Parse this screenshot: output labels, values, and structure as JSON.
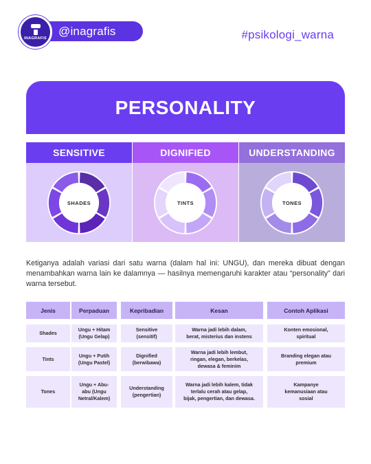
{
  "header": {
    "logo_text": "INAGRAFIS",
    "handle": "@inagrafis",
    "hashtag": "#psikologi_warna"
  },
  "title": "PERSONALITY",
  "columns": [
    {
      "heading": "SENSITIVE",
      "donut_label": "SHADES",
      "header_color": "#6a3df0",
      "panel_color": "#dccdfc",
      "segments": [
        "#5a2ea6",
        "#6a37c4",
        "#5c24b8",
        "#6f35d9",
        "#7c47e6",
        "#8a5ae8"
      ]
    },
    {
      "heading": "DIGNIFIED",
      "donut_label": "TINTS",
      "header_color": "#a855f7",
      "panel_color": "#dcbaf5",
      "segments": [
        "#9b6cf2",
        "#b08cf5",
        "#c3a6f7",
        "#d7c2fa",
        "#e4d5fc",
        "#efe6fd"
      ]
    },
    {
      "heading": "UNDERSTANDING",
      "donut_label": "TONES",
      "header_color": "#9370db",
      "panel_color": "#b9aedb",
      "segments": [
        "#6d4ad1",
        "#7a57dc",
        "#8d6ce5",
        "#a48bea",
        "#c4b2f3",
        "#e0d5fa"
      ]
    }
  ],
  "paragraph": "Ketiganya adalah variasi dari satu warna (dalam hal ini: UNGU), dan mereka dibuat dengan menambahkan warna lain ke dalamnya — hasilnya memengaruhi karakter atau “personality” dari warna tersebut.",
  "table": {
    "headers": [
      "Jenis",
      "Perpaduan",
      "Kepribadian",
      "Kesan",
      "Contoh Aplikasi"
    ],
    "rows": [
      [
        "Shades",
        "Ungu + Hitam\n(Ungu Gelap)",
        "Sensitive\n(sensitif)",
        "Warna jadi lebih dalam,\nberat, misterius dan instens",
        "Konten emosional,\nspiritual"
      ],
      [
        "Tints",
        "Ungu + Putih\n(Ungu Pastel)",
        "Dignified\n(berwibawa)",
        "Warna jadi lebih lembut,\nringan, elegan, berkelas,\ndewasa & feminim",
        "Branding elegan atau\npremium"
      ],
      [
        "Tones",
        "Ungu + Abu-\nabu (Ungu\nNetral/Kalem)",
        "Understanding\n(pengertian)",
        "Warna jadi lebih kalem, tidak\nterlalu cerah atau gelap,\nbijak, pengertian, dan dewasa.",
        "Kampanye\nkemanusiaan atau\nsosial"
      ]
    ]
  }
}
